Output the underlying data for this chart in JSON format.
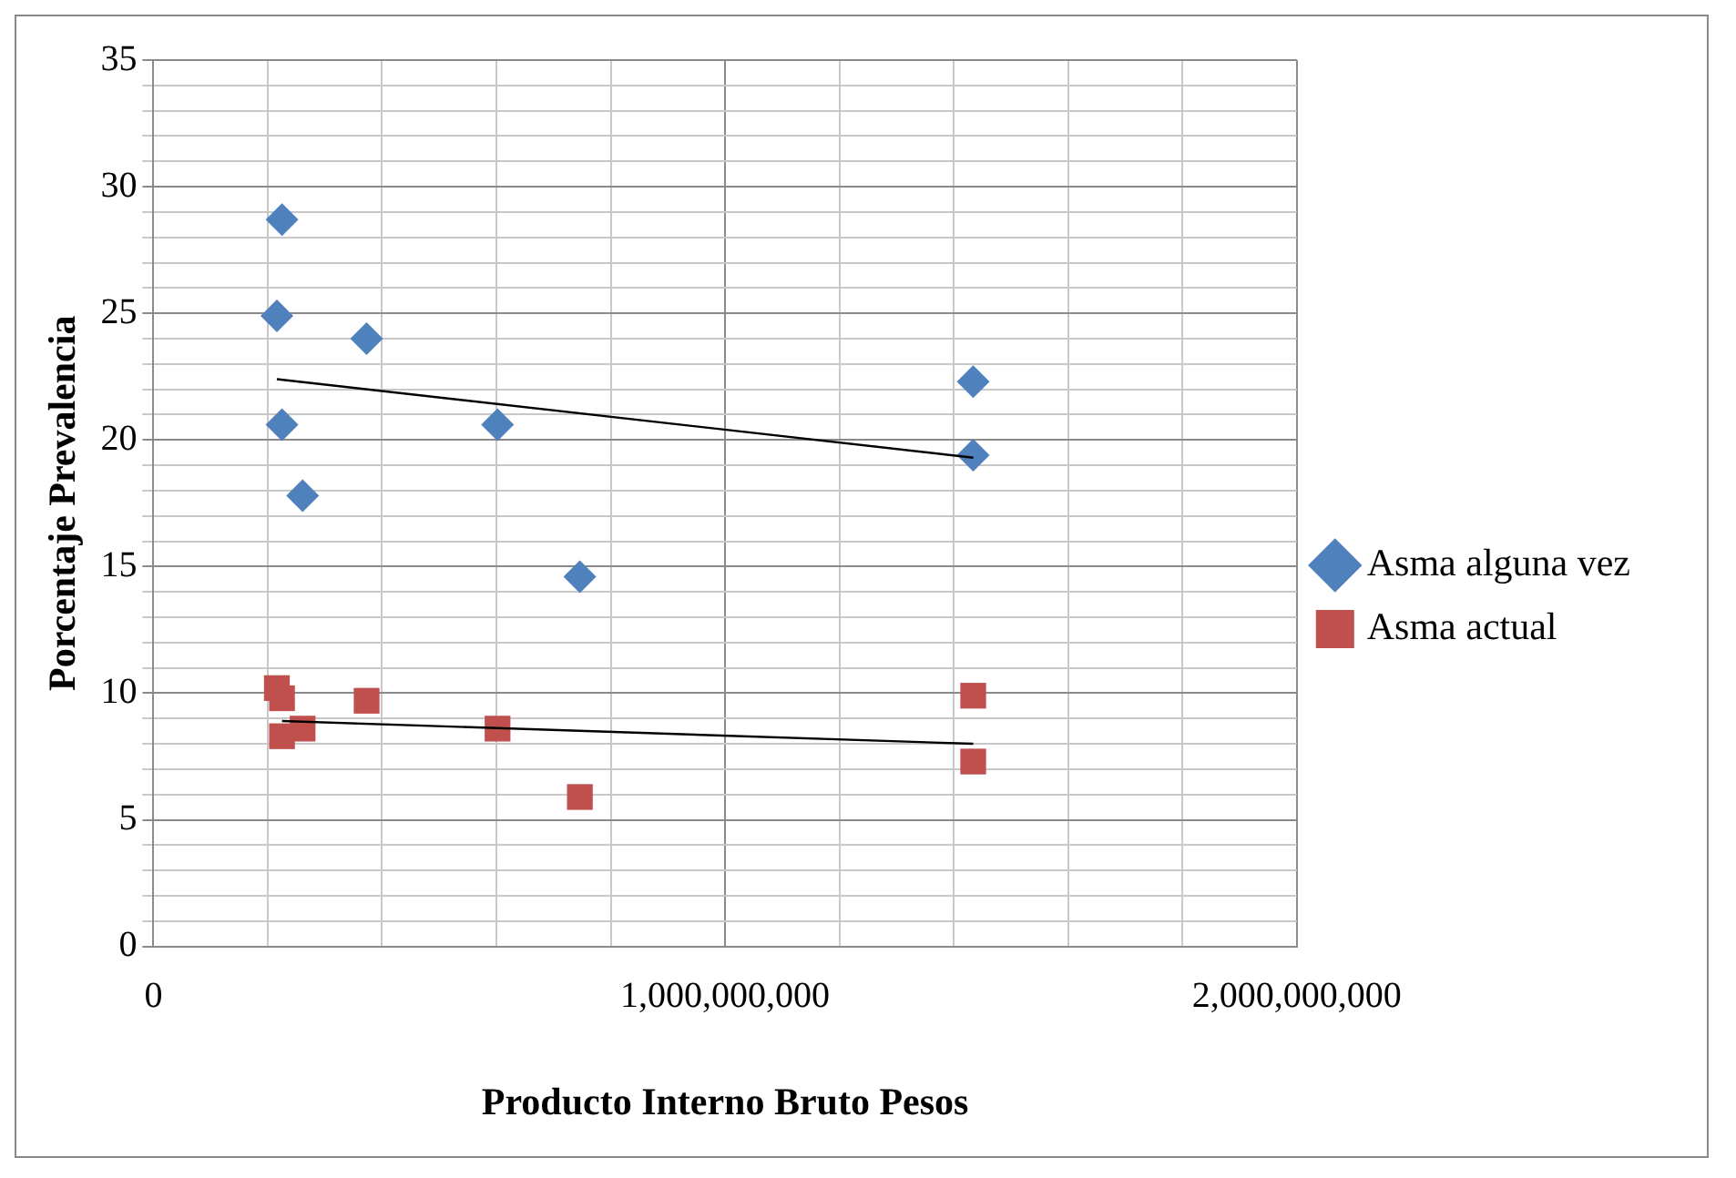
{
  "chart_data": {
    "type": "scatter",
    "xlabel": "Producto Interno Bruto Pesos",
    "ylabel": "Porcentaje Prevalencia",
    "series": [
      {
        "name": "Asma alguna vez",
        "color": "#4f81bd",
        "marker": "diamond",
        "x": [
          225000000,
          216000000,
          373000000,
          225000000,
          261000000,
          602000000,
          746000000,
          1434000000,
          1434000000
        ],
        "values": [
          28.7,
          24.9,
          24.0,
          20.6,
          17.8,
          20.6,
          14.6,
          22.3,
          19.4
        ]
      },
      {
        "name": "Asma actual",
        "color": "#c0504d",
        "marker": "square",
        "x": [
          216000000,
          225000000,
          225000000,
          261000000,
          373000000,
          602000000,
          746000000,
          1434000000,
          1434000000
        ],
        "values": [
          10.2,
          9.8,
          8.3,
          8.6,
          9.7,
          8.6,
          5.9,
          9.9,
          7.3
        ]
      },
      {
        "type": "line",
        "color": "#000000",
        "marker": "none",
        "x": [
          216000000,
          1434000000
        ],
        "values": [
          22.4,
          19.3
        ]
      },
      {
        "type": "line",
        "color": "#000000",
        "marker": "none",
        "x": [
          225000000,
          1434000000
        ],
        "values": [
          8.9,
          8.0
        ]
      }
    ],
    "xlim": [
      0,
      2000000000
    ],
    "xticks": [
      0,
      {
        "value": 200000000,
        "label": null
      },
      {
        "value": 400000000,
        "label": null
      },
      {
        "value": 600000000,
        "label": null
      },
      {
        "value": 800000000,
        "label": null
      },
      {
        "value": 1000000000,
        "label": "1,000,000,000"
      },
      {
        "value": 1200000000,
        "label": null
      },
      {
        "value": 1400000000,
        "label": null
      },
      {
        "value": 1600000000,
        "label": null
      },
      {
        "value": 1800000000,
        "label": null
      },
      {
        "value": 2000000000,
        "label": "2,000,000,000"
      }
    ],
    "ylim": [
      0,
      35
    ],
    "yticks": [
      0,
      {
        "value": 1,
        "label": null
      },
      {
        "value": 2,
        "label": null
      },
      {
        "value": 3,
        "label": null
      },
      {
        "value": 4,
        "label": null
      },
      5,
      {
        "value": 6,
        "label": null
      },
      {
        "value": 7,
        "label": null
      },
      {
        "value": 8,
        "label": null
      },
      {
        "value": 9,
        "label": null
      },
      10,
      {
        "value": 11,
        "label": null
      },
      {
        "value": 12,
        "label": null
      },
      {
        "value": 13,
        "label": null
      },
      {
        "value": 14,
        "label": null
      },
      15,
      {
        "value": 16,
        "label": null
      },
      {
        "value": 17,
        "label": null
      },
      {
        "value": 18,
        "label": null
      },
      {
        "value": 19,
        "label": null
      },
      20,
      {
        "value": 21,
        "label": null
      },
      {
        "value": 22,
        "label": null
      },
      {
        "value": 23,
        "label": null
      },
      {
        "value": 24,
        "label": null
      },
      25,
      {
        "value": 26,
        "label": null
      },
      {
        "value": 27,
        "label": null
      },
      {
        "value": 28,
        "label": null
      },
      {
        "value": 29,
        "label": null
      },
      30,
      {
        "value": 31,
        "label": null
      },
      {
        "value": 32,
        "label": null
      },
      {
        "value": 33,
        "label": null
      },
      {
        "value": 34,
        "label": null
      },
      35
    ],
    "grid": true,
    "legend": "right"
  }
}
